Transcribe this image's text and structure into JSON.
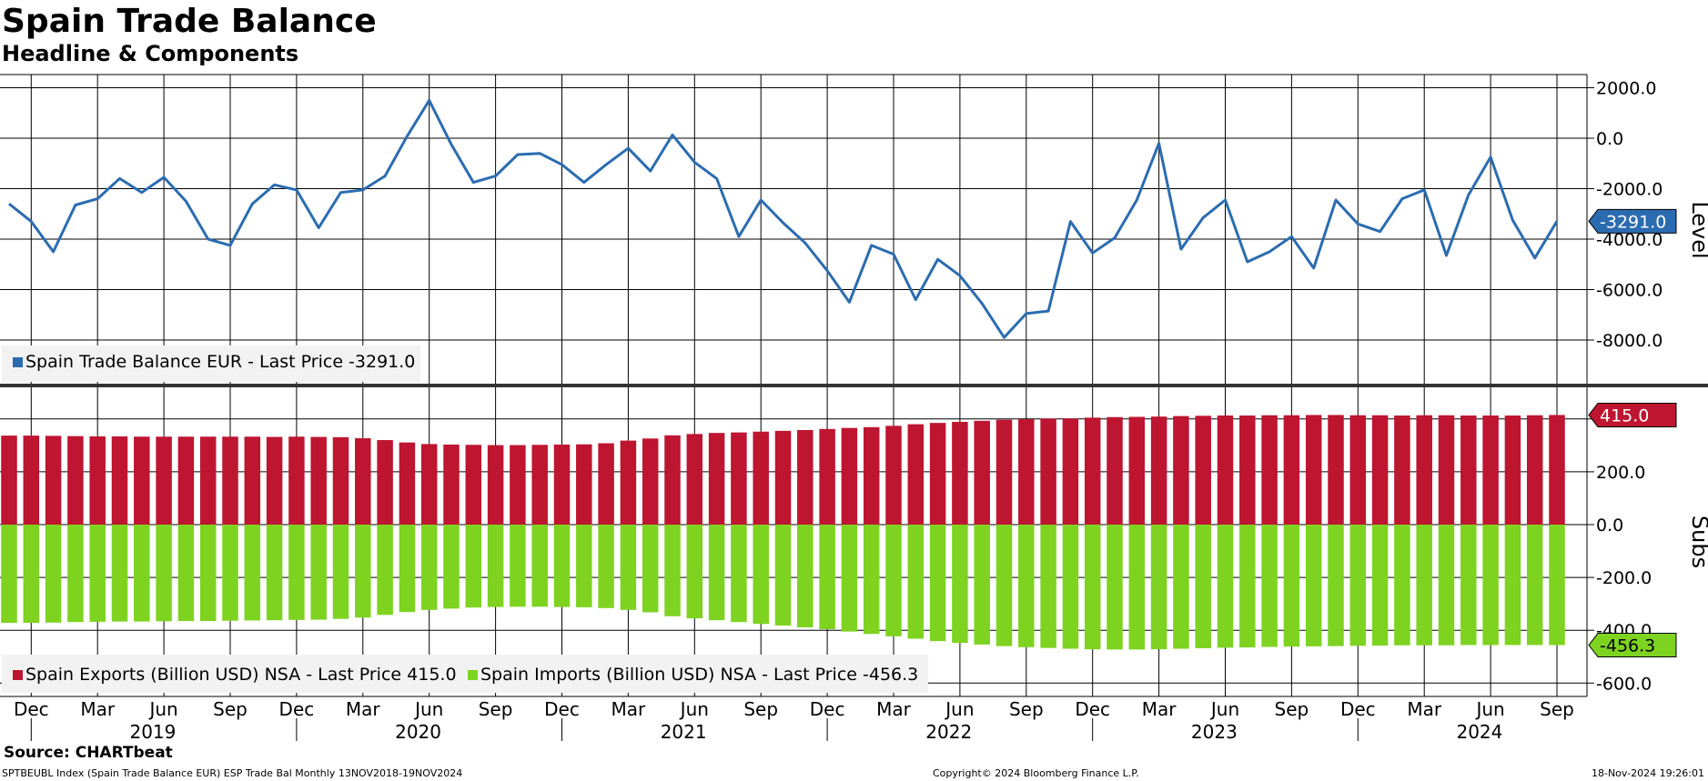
{
  "header": {
    "title": "Spain Trade Balance",
    "subtitle": "Headline & Components"
  },
  "footer": {
    "source": "Source: CHARTbeat",
    "ticker_info": "SPTBEUBL Index (Spain Trade Balance EUR) ESP Trade Bal  Monthly 13NOV2018-19NOV2024",
    "copyright": "Copyright© 2024 Bloomberg Finance L.P.",
    "timestamp": "18-Nov-2024 19:26:01"
  },
  "colors": {
    "line": "#2b6cb0",
    "exports": "#be1531",
    "imports": "#7ed321",
    "grid": "#000000",
    "legend_bg": "#f2f2f2"
  },
  "chart_data": [
    {
      "type": "line",
      "panel_label": "Level",
      "ylim": [
        -9500,
        2500
      ],
      "yticks": [
        2000,
        0,
        -2000,
        -4000,
        -6000,
        -8000
      ],
      "ytick_labels": [
        "2000.0",
        "0.0",
        "-2000.0",
        "-4000.0",
        "-6000.0",
        "-8000.0"
      ],
      "legend": "Spain Trade Balance EUR - Last Price -3291.0",
      "last_value_label": "-3291.0",
      "grid": true,
      "series": [
        {
          "name": "Spain Trade Balance EUR",
          "x": [
            "2018-11",
            "2018-12",
            "2019-01",
            "2019-02",
            "2019-03",
            "2019-04",
            "2019-05",
            "2019-06",
            "2019-07",
            "2019-08",
            "2019-09",
            "2019-10",
            "2019-11",
            "2019-12",
            "2020-01",
            "2020-02",
            "2020-03",
            "2020-04",
            "2020-05",
            "2020-06",
            "2020-07",
            "2020-08",
            "2020-09",
            "2020-10",
            "2020-11",
            "2020-12",
            "2021-01",
            "2021-02",
            "2021-03",
            "2021-04",
            "2021-05",
            "2021-06",
            "2021-07",
            "2021-08",
            "2021-09",
            "2021-10",
            "2021-11",
            "2021-12",
            "2022-01",
            "2022-02",
            "2022-03",
            "2022-04",
            "2022-05",
            "2022-06",
            "2022-07",
            "2022-08",
            "2022-09",
            "2022-10",
            "2022-11",
            "2022-12",
            "2023-01",
            "2023-02",
            "2023-03",
            "2023-04",
            "2023-05",
            "2023-06",
            "2023-07",
            "2023-08",
            "2023-09",
            "2023-10",
            "2023-11",
            "2023-12",
            "2024-01",
            "2024-02",
            "2024-03",
            "2024-04",
            "2024-05",
            "2024-06",
            "2024-07",
            "2024-08",
            "2024-09"
          ],
          "values": [
            -2600,
            -3300,
            -4500,
            -2650,
            -2400,
            -1600,
            -2150,
            -1550,
            -2500,
            -4000,
            -4250,
            -2600,
            -1850,
            -2050,
            -3550,
            -2150,
            -2050,
            -1500,
            80,
            1500,
            -250,
            -1750,
            -1500,
            -650,
            -600,
            -1050,
            -1750,
            -1050,
            -400,
            -1300,
            130,
            -950,
            -1600,
            -3900,
            -2450,
            -3350,
            -4150,
            -5250,
            -6500,
            -4250,
            -4600,
            -6400,
            -4800,
            -5450,
            -6550,
            -7900,
            -6950,
            -6850,
            -3300,
            -4550,
            -3950,
            -2450,
            -200,
            -4400,
            -3150,
            -2450,
            -4900,
            -4500,
            -3900,
            -5150,
            -2450,
            -3400,
            -3700,
            -2400,
            -2050,
            -4650,
            -2250,
            -750,
            -3250,
            -4750,
            -3291
          ]
        }
      ]
    },
    {
      "type": "bar",
      "panel_label": "Subs",
      "ylim": [
        -650,
        450
      ],
      "yticks": [
        400,
        200,
        0,
        -200,
        -400,
        -600
      ],
      "ytick_labels": [
        "400.0",
        "200.0",
        "0.0",
        "-200.0",
        "-400.0",
        "-600.0"
      ],
      "legend": [
        "Spain Exports (Billion USD) NSA - Last Price 415.0",
        "Spain Imports (Billion USD) NSA - Last Price -456.3"
      ],
      "last_value_labels": [
        "415.0",
        "-456.3"
      ],
      "grid": true,
      "series": [
        {
          "name": "Spain Exports (Billion USD) NSA",
          "values": [
            337,
            337,
            336,
            335,
            334,
            334,
            333,
            333,
            333,
            333,
            333,
            333,
            332,
            333,
            332,
            331,
            327,
            320,
            311,
            305,
            303,
            302,
            301,
            301,
            302,
            303,
            304,
            308,
            318,
            326,
            338,
            343,
            347,
            349,
            352,
            355,
            358,
            362,
            366,
            369,
            374,
            380,
            385,
            389,
            393,
            397,
            399,
            401,
            402,
            405,
            407,
            408,
            409,
            411,
            412,
            413,
            413,
            414,
            414,
            415,
            415,
            414,
            414,
            413,
            414,
            414,
            413,
            413,
            413,
            414,
            415
          ]
        },
        {
          "name": "Spain Imports (Billion USD) NSA",
          "values": [
            -372,
            -372,
            -371,
            -369,
            -368,
            -367,
            -367,
            -366,
            -365,
            -365,
            -364,
            -363,
            -362,
            -361,
            -360,
            -357,
            -352,
            -342,
            -331,
            -323,
            -318,
            -314,
            -312,
            -311,
            -311,
            -312,
            -313,
            -316,
            -323,
            -332,
            -347,
            -355,
            -362,
            -369,
            -376,
            -382,
            -389,
            -396,
            -405,
            -414,
            -423,
            -432,
            -441,
            -448,
            -454,
            -460,
            -464,
            -467,
            -470,
            -472,
            -473,
            -473,
            -472,
            -470,
            -468,
            -466,
            -465,
            -463,
            -462,
            -461,
            -460,
            -459,
            -458,
            -457,
            -457,
            -457,
            -456,
            -456,
            -456,
            -456,
            -456.3
          ]
        }
      ]
    }
  ],
  "x_axis": {
    "month_labels": [
      "Dec",
      "Mar",
      "Jun",
      "Sep",
      "Dec",
      "Mar",
      "Jun",
      "Sep",
      "Dec",
      "Mar",
      "Jun",
      "Sep",
      "Dec",
      "Mar",
      "Jun",
      "Sep",
      "Dec",
      "Mar",
      "Jun",
      "Sep",
      "Dec",
      "Mar",
      "Jun",
      "Sep"
    ],
    "year_labels": [
      "2019",
      "2020",
      "2021",
      "2022",
      "2023",
      "2024"
    ]
  }
}
